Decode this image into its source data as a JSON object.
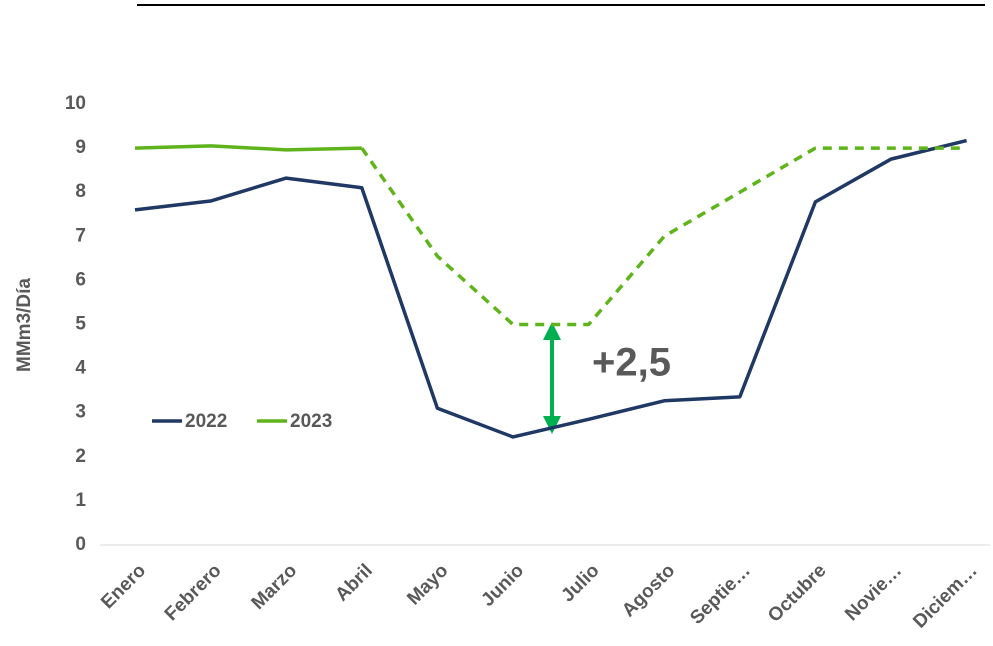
{
  "chart_data": {
    "type": "line",
    "y_label": "MMm3/Día",
    "categories": [
      "Enero",
      "Febrero",
      "Marzo",
      "Abril",
      "Mayo",
      "Junio",
      "Julio",
      "Agosto",
      "Septie…",
      "Octubre",
      "Novie…",
      "Diciem…"
    ],
    "series": [
      {
        "name": "2022",
        "color": "#1f3864",
        "values": [
          7.6,
          7.8,
          8.32,
          8.1,
          3.1,
          2.45,
          2.85,
          3.27,
          3.36,
          7.78,
          8.75,
          9.17
        ]
      },
      {
        "name": "2023",
        "color": "#5fb41c",
        "dash_start": 3,
        "values": [
          9.0,
          9.05,
          8.96,
          9.0,
          6.55,
          5.0,
          5.0,
          7.0,
          8.0,
          9.0,
          9.0,
          9.0
        ]
      }
    ],
    "ylim": [
      0,
      10
    ],
    "yticks": [
      0,
      1,
      2,
      3,
      4,
      5,
      6,
      7,
      8,
      9,
      10
    ],
    "grid": false,
    "legend": "left",
    "annotation": "+2,5",
    "annotation_color": "#00b050"
  }
}
